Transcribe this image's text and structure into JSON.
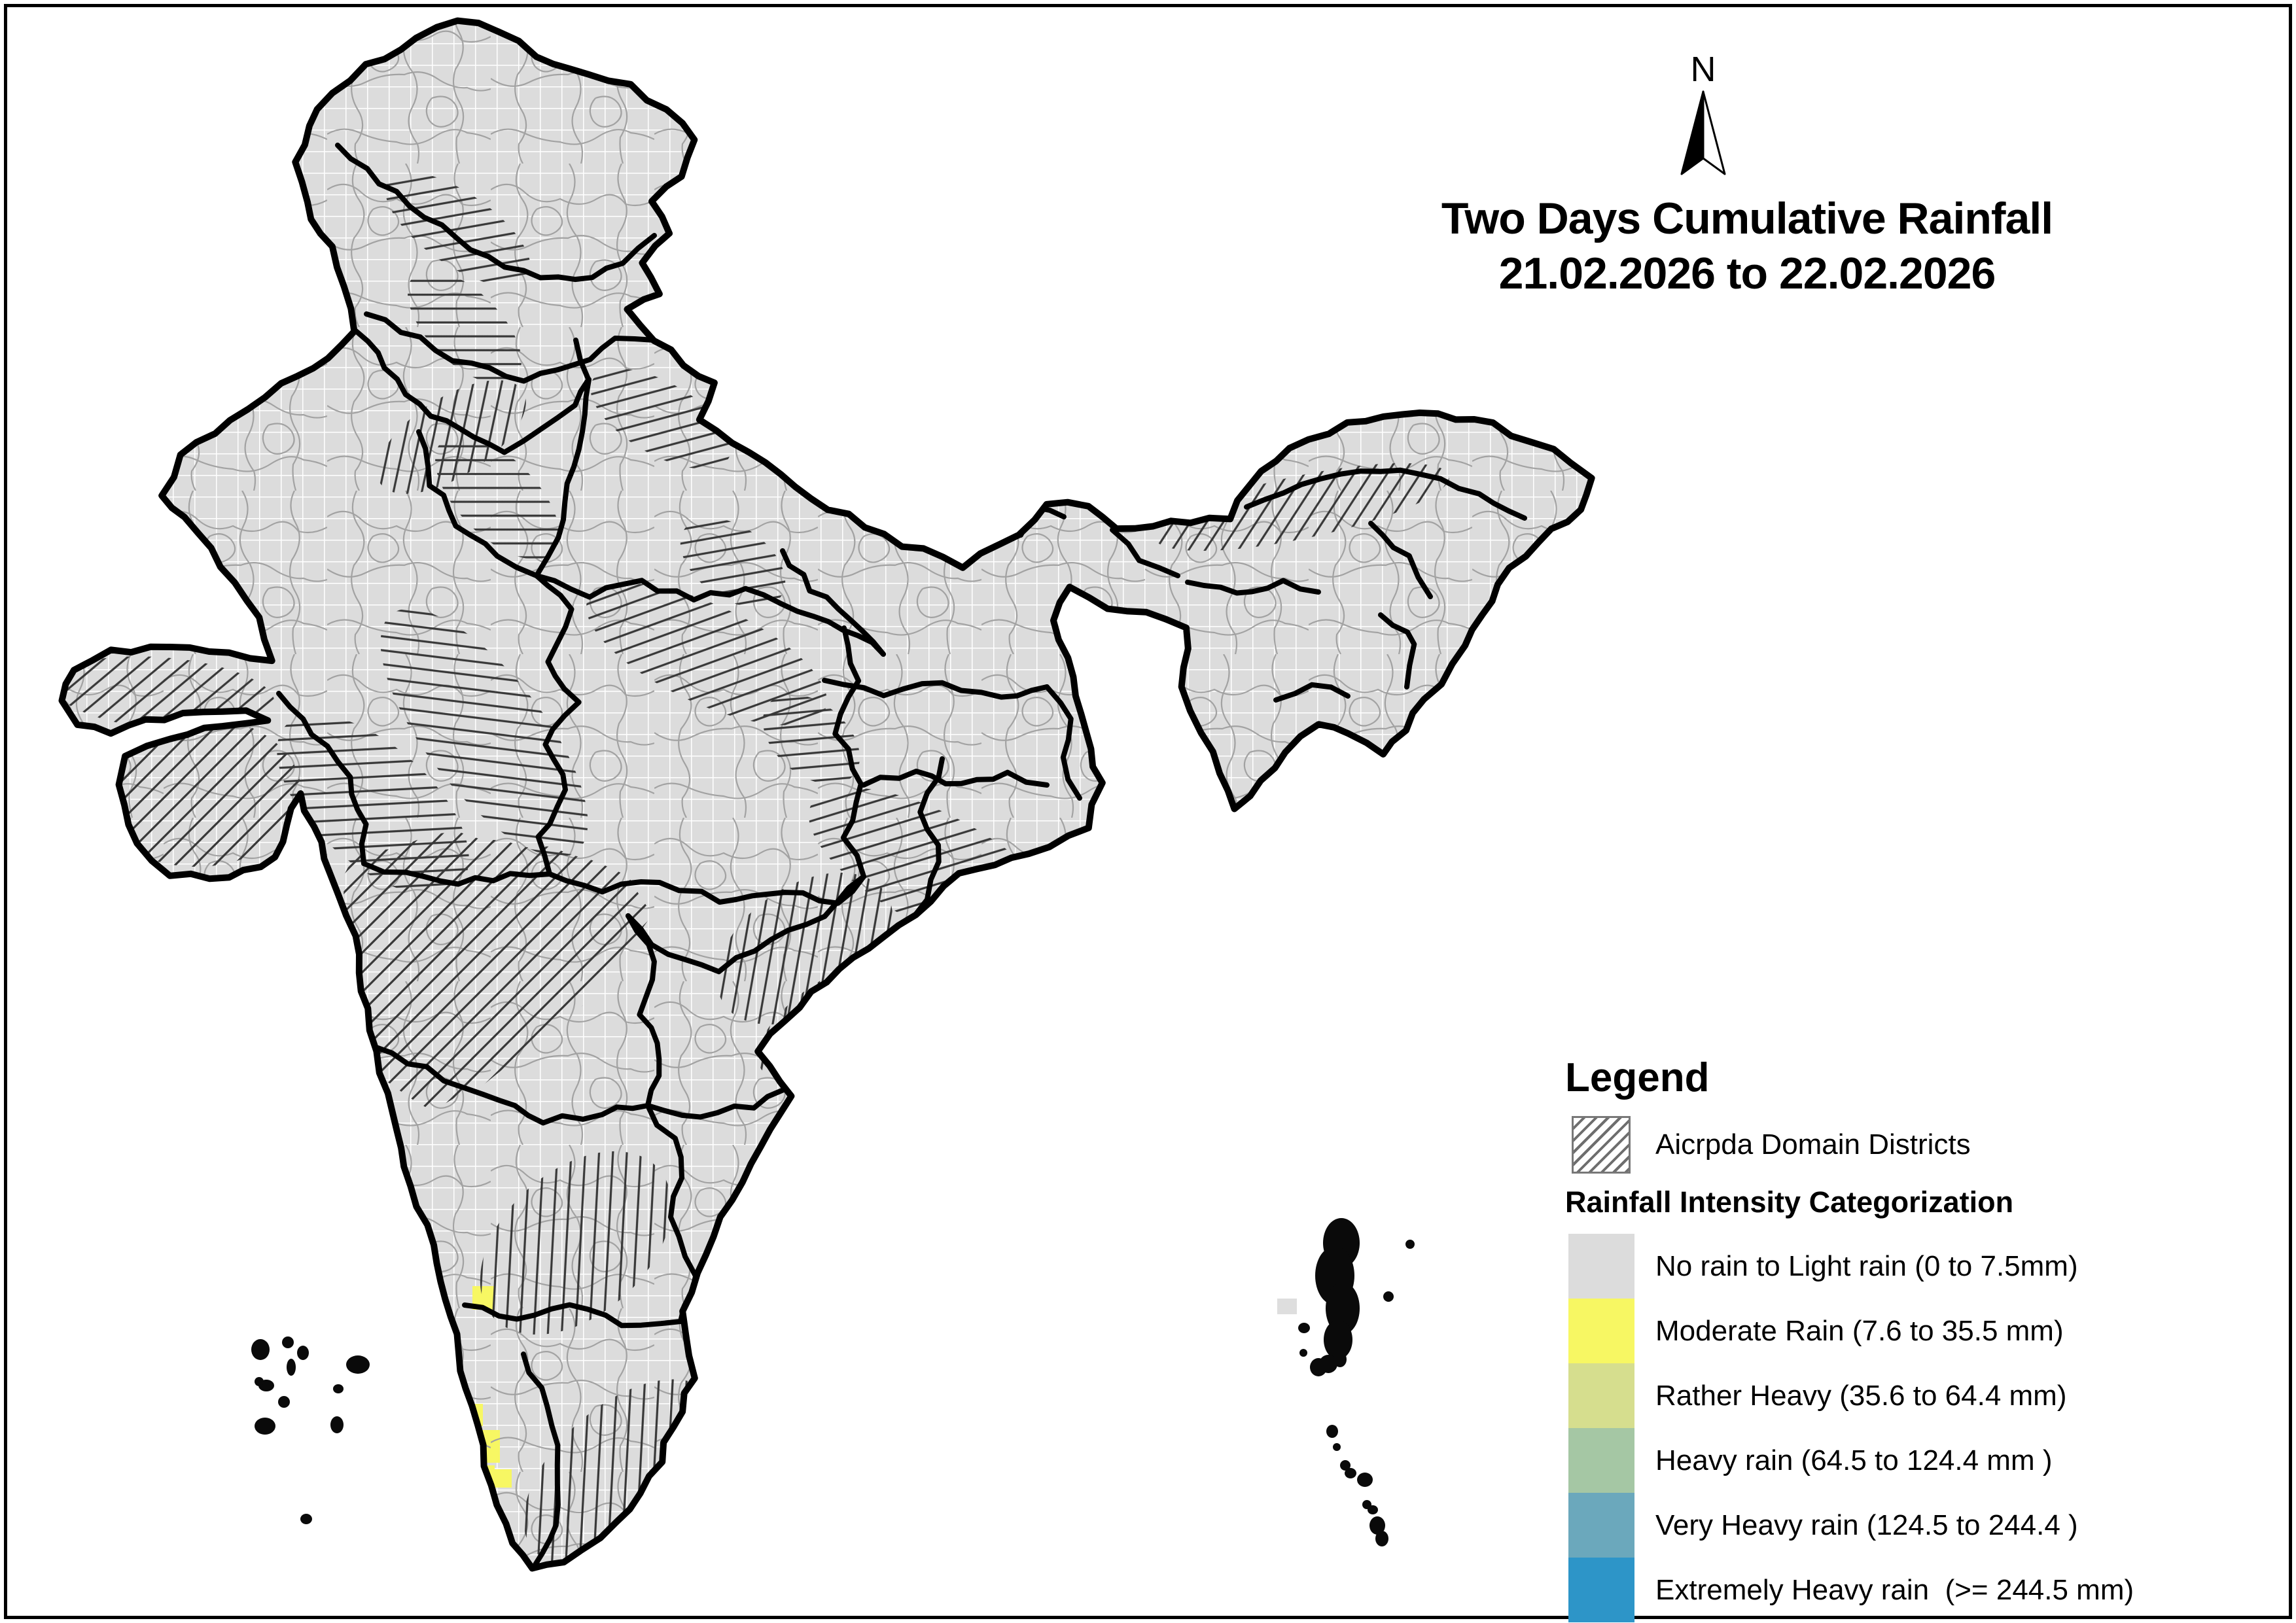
{
  "title": {
    "line1": "Two Days Cumulative Rainfall",
    "line2": "21.02.2026 to 22.02.2026"
  },
  "north_arrow": {
    "label": "N"
  },
  "legend": {
    "heading": "Legend",
    "domain_item": {
      "label": "Aicrpda Domain Districts"
    },
    "subheading": "Rainfall Intensity Categorization",
    "classes": [
      {
        "label": "No rain to Light rain (0 to 7.5mm)",
        "color": "#dcdcdc"
      },
      {
        "label": "Moderate Rain (7.6 to 35.5 mm)",
        "color": "#f7f763"
      },
      {
        "label": "Rather Heavy (35.6 to 64.4 mm)",
        "color": "#d6de8e"
      },
      {
        "label": "Heavy rain (64.5 to 124.4 mm )",
        "color": "#a5c7a4"
      },
      {
        "label": "Very Heavy rain (124.5 to 244.4 )",
        "color": "#6ba8bc"
      },
      {
        "label": "Extremely Heavy rain  (>= 244.5 mm)",
        "color": "#2d95c8"
      }
    ]
  },
  "map": {
    "landmass_fill": "#e3e3e3",
    "grid_line_color": "#ffffff",
    "district_line_color": "#a2a2a2",
    "hatch_color": "#383838",
    "border_color": "#000000"
  }
}
